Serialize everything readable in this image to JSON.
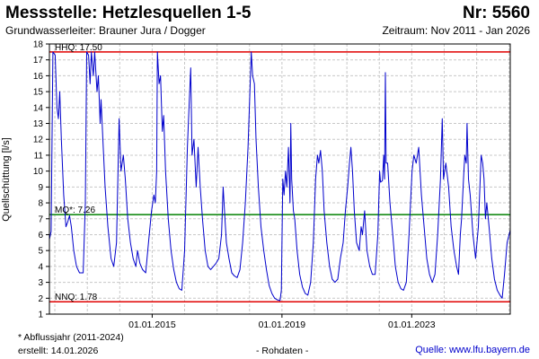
{
  "header": {
    "title": "Messstelle: Hetzlesquellen 1-5",
    "nr": "Nr: 5560",
    "aquifer": "Grundwasserleiter:   Brauner Jura / Dogger",
    "period": "Zeitraum: Nov 2011 - Jan 2026"
  },
  "footer": {
    "footnote": "* Abflussjahr (2011-2024)",
    "created": "erstellt:  14.01.2026",
    "rohdaten": "- Rohdaten -",
    "source": "Quelle: www.lfu.bayern.de"
  },
  "colors": {
    "series": "#0000cc",
    "extreme_lines": "#e00000",
    "mean_line": "#008000",
    "grid": "#c8c8c8",
    "plot_background": "#ffffff"
  },
  "chart_data": {
    "type": "line",
    "title": "",
    "ylabel": "Quellschüttung [l/s]",
    "xlabel": "",
    "ylim": [
      1,
      18
    ],
    "yticks": [
      1,
      2,
      3,
      4,
      5,
      6,
      7,
      8,
      9,
      10,
      11,
      12,
      13,
      14,
      15,
      16,
      17,
      18
    ],
    "xlim": [
      "2011-11-01",
      "2026-01-14"
    ],
    "xticks": [
      {
        "date": "2015-01-01",
        "label": "01.01.2015"
      },
      {
        "date": "2019-01-01",
        "label": "01.01.2019"
      },
      {
        "date": "2023-01-01",
        "label": "01.01.2023"
      }
    ],
    "grid": true,
    "reference_lines": [
      {
        "label": "HHQ: 17.50",
        "value": 17.5,
        "color": "#e00000"
      },
      {
        "label": "MQ*: 7.26",
        "value": 7.26,
        "color": "#008000"
      },
      {
        "label": "NNQ: 1.78",
        "value": 1.78,
        "color": "#e00000"
      }
    ],
    "series": [
      {
        "color": "#0000cc",
        "points": [
          [
            "2011-11-01",
            5.7
          ],
          [
            "2011-11-20",
            6.2
          ],
          [
            "2011-12-10",
            17.5
          ],
          [
            "2012-01-05",
            17.3
          ],
          [
            "2012-01-25",
            14.0
          ],
          [
            "2012-02-10",
            13.3
          ],
          [
            "2012-02-25",
            15.0
          ],
          [
            "2012-03-15",
            12.0
          ],
          [
            "2012-04-10",
            8.5
          ],
          [
            "2012-05-05",
            6.5
          ],
          [
            "2012-05-25",
            6.8
          ],
          [
            "2012-06-15",
            7.2
          ],
          [
            "2012-07-05",
            6.5
          ],
          [
            "2012-08-01",
            5.0
          ],
          [
            "2012-09-01",
            4.0
          ],
          [
            "2012-10-05",
            3.6
          ],
          [
            "2012-11-15",
            3.6
          ],
          [
            "2012-12-10",
            8.0
          ],
          [
            "2012-12-25",
            17.5
          ],
          [
            "2013-01-15",
            17.3
          ],
          [
            "2013-02-01",
            15.5
          ],
          [
            "2013-02-15",
            17.5
          ],
          [
            "2013-03-10",
            16.0
          ],
          [
            "2013-03-25",
            17.5
          ],
          [
            "2013-04-20",
            15.0
          ],
          [
            "2013-05-05",
            16.0
          ],
          [
            "2013-05-25",
            13.0
          ],
          [
            "2013-06-05",
            14.5
          ],
          [
            "2013-06-25",
            12.0
          ],
          [
            "2013-07-20",
            9.0
          ],
          [
            "2013-08-20",
            6.5
          ],
          [
            "2013-09-25",
            4.5
          ],
          [
            "2013-10-25",
            4.0
          ],
          [
            "2013-11-25",
            5.5
          ],
          [
            "2013-12-25",
            13.3
          ],
          [
            "2014-01-15",
            10.0
          ],
          [
            "2014-02-10",
            11.0
          ],
          [
            "2014-03-05",
            9.5
          ],
          [
            "2014-04-01",
            7.0
          ],
          [
            "2014-05-01",
            5.5
          ],
          [
            "2014-06-01",
            4.5
          ],
          [
            "2014-07-01",
            4.0
          ],
          [
            "2014-07-20",
            5.0
          ],
          [
            "2014-08-15",
            4.2
          ],
          [
            "2014-09-15",
            3.8
          ],
          [
            "2014-10-20",
            3.6
          ],
          [
            "2014-11-20",
            5.5
          ],
          [
            "2014-12-25",
            7.5
          ],
          [
            "2015-01-20",
            8.5
          ],
          [
            "2015-02-05",
            8.0
          ],
          [
            "2015-02-20",
            10.0
          ],
          [
            "2015-03-01",
            17.5
          ],
          [
            "2015-03-20",
            15.5
          ],
          [
            "2015-04-05",
            16.0
          ],
          [
            "2015-04-25",
            12.5
          ],
          [
            "2015-05-10",
            13.5
          ],
          [
            "2015-06-01",
            10.0
          ],
          [
            "2015-07-01",
            7.0
          ],
          [
            "2015-08-01",
            5.0
          ],
          [
            "2015-09-01",
            3.8
          ],
          [
            "2015-10-01",
            3.0
          ],
          [
            "2015-11-01",
            2.6
          ],
          [
            "2015-12-01",
            2.5
          ],
          [
            "2016-01-01",
            5.0
          ],
          [
            "2016-02-01",
            11.5
          ],
          [
            "2016-02-20",
            14.0
          ],
          [
            "2016-03-10",
            16.5
          ],
          [
            "2016-03-25",
            11.0
          ],
          [
            "2016-04-15",
            12.0
          ],
          [
            "2016-05-10",
            9.0
          ],
          [
            "2016-06-01",
            11.5
          ],
          [
            "2016-06-25",
            9.0
          ],
          [
            "2016-07-20",
            7.0
          ],
          [
            "2016-08-20",
            5.0
          ],
          [
            "2016-09-20",
            4.0
          ],
          [
            "2016-10-20",
            3.8
          ],
          [
            "2016-11-20",
            4.0
          ],
          [
            "2016-12-20",
            4.2
          ],
          [
            "2017-01-20",
            4.5
          ],
          [
            "2017-02-20",
            6.0
          ],
          [
            "2017-03-10",
            9.0
          ],
          [
            "2017-03-25",
            7.5
          ],
          [
            "2017-04-15",
            5.5
          ],
          [
            "2017-05-15",
            4.5
          ],
          [
            "2017-06-15",
            3.6
          ],
          [
            "2017-07-15",
            3.4
          ],
          [
            "2017-08-15",
            3.3
          ],
          [
            "2017-09-15",
            3.8
          ],
          [
            "2017-10-15",
            5.5
          ],
          [
            "2017-11-15",
            8.0
          ],
          [
            "2017-12-15",
            11.5
          ],
          [
            "2018-01-05",
            15.0
          ],
          [
            "2018-01-20",
            17.5
          ],
          [
            "2018-02-05",
            16.0
          ],
          [
            "2018-02-25",
            15.5
          ],
          [
            "2018-03-15",
            12.0
          ],
          [
            "2018-04-10",
            9.0
          ],
          [
            "2018-05-10",
            6.5
          ],
          [
            "2018-06-10",
            5.0
          ],
          [
            "2018-07-10",
            3.8
          ],
          [
            "2018-08-10",
            2.8
          ],
          [
            "2018-09-10",
            2.3
          ],
          [
            "2018-10-10",
            2.0
          ],
          [
            "2018-11-10",
            1.9
          ],
          [
            "2018-12-10",
            1.85
          ],
          [
            "2018-12-25",
            2.5
          ],
          [
            "2019-01-10",
            9.5
          ],
          [
            "2019-01-25",
            8.5
          ],
          [
            "2019-02-10",
            10.0
          ],
          [
            "2019-02-25",
            9.0
          ],
          [
            "2019-03-15",
            11.5
          ],
          [
            "2019-04-01",
            8.0
          ],
          [
            "2019-04-10",
            13.0
          ],
          [
            "2019-04-20",
            9.5
          ],
          [
            "2019-05-10",
            7.5
          ],
          [
            "2019-05-25",
            7.0
          ],
          [
            "2019-06-20",
            5.0
          ],
          [
            "2019-07-20",
            3.5
          ],
          [
            "2019-08-20",
            2.7
          ],
          [
            "2019-09-20",
            2.3
          ],
          [
            "2019-10-20",
            2.2
          ],
          [
            "2019-11-20",
            3.0
          ],
          [
            "2019-12-20",
            5.5
          ],
          [
            "2020-01-15",
            9.5
          ],
          [
            "2020-02-05",
            11.0
          ],
          [
            "2020-02-20",
            10.5
          ],
          [
            "2020-03-10",
            11.3
          ],
          [
            "2020-03-30",
            10.0
          ],
          [
            "2020-04-20",
            7.5
          ],
          [
            "2020-05-20",
            5.5
          ],
          [
            "2020-06-20",
            4.0
          ],
          [
            "2020-07-20",
            3.2
          ],
          [
            "2020-08-20",
            3.0
          ],
          [
            "2020-09-20",
            3.2
          ],
          [
            "2020-10-20",
            4.5
          ],
          [
            "2020-11-20",
            5.5
          ],
          [
            "2020-12-15",
            7.5
          ],
          [
            "2021-01-10",
            9.0
          ],
          [
            "2021-01-30",
            10.5
          ],
          [
            "2021-02-15",
            11.5
          ],
          [
            "2021-03-05",
            10.0
          ],
          [
            "2021-03-25",
            7.5
          ],
          [
            "2021-04-20",
            5.5
          ],
          [
            "2021-05-20",
            5.0
          ],
          [
            "2021-06-10",
            6.5
          ],
          [
            "2021-06-25",
            6.0
          ],
          [
            "2021-07-20",
            7.5
          ],
          [
            "2021-08-15",
            5.0
          ],
          [
            "2021-09-15",
            4.0
          ],
          [
            "2021-10-15",
            3.5
          ],
          [
            "2021-11-15",
            3.5
          ],
          [
            "2021-12-15",
            6.0
          ],
          [
            "2022-01-05",
            10.0
          ],
          [
            "2022-01-15",
            9.3
          ],
          [
            "2022-02-05",
            9.4
          ],
          [
            "2022-02-20",
            11.0
          ],
          [
            "2022-03-01",
            9.5
          ],
          [
            "2022-03-10",
            16.2
          ],
          [
            "2022-03-18",
            10.5
          ],
          [
            "2022-04-05",
            10.5
          ],
          [
            "2022-05-01",
            8.0
          ],
          [
            "2022-06-01",
            6.0
          ],
          [
            "2022-07-01",
            4.0
          ],
          [
            "2022-08-01",
            3.0
          ],
          [
            "2022-09-01",
            2.6
          ],
          [
            "2022-10-01",
            2.5
          ],
          [
            "2022-11-01",
            3.0
          ],
          [
            "2022-12-01",
            6.0
          ],
          [
            "2023-01-05",
            10.0
          ],
          [
            "2023-01-25",
            11.0
          ],
          [
            "2023-02-20",
            10.5
          ],
          [
            "2023-03-20",
            11.5
          ],
          [
            "2023-04-20",
            8.5
          ],
          [
            "2023-05-20",
            6.5
          ],
          [
            "2023-06-20",
            4.5
          ],
          [
            "2023-07-20",
            3.5
          ],
          [
            "2023-08-20",
            3.0
          ],
          [
            "2023-09-20",
            3.5
          ],
          [
            "2023-10-20",
            6.0
          ],
          [
            "2023-11-20",
            9.5
          ],
          [
            "2023-12-10",
            13.3
          ],
          [
            "2023-12-25",
            9.5
          ],
          [
            "2024-01-20",
            10.5
          ],
          [
            "2024-02-20",
            9.0
          ],
          [
            "2024-03-20",
            6.5
          ],
          [
            "2024-04-20",
            5.0
          ],
          [
            "2024-05-20",
            4.0
          ],
          [
            "2024-06-10",
            3.5
          ],
          [
            "2024-07-01",
            6.0
          ],
          [
            "2024-07-15",
            7.0
          ],
          [
            "2024-08-10",
            10.0
          ],
          [
            "2024-08-20",
            11.0
          ],
          [
            "2024-09-05",
            10.5
          ],
          [
            "2024-09-15",
            13.0
          ],
          [
            "2024-10-01",
            9.5
          ],
          [
            "2024-10-20",
            8.5
          ],
          [
            "2024-11-20",
            6.0
          ],
          [
            "2024-12-20",
            4.5
          ],
          [
            "2025-01-20",
            6.5
          ],
          [
            "2025-02-20",
            11.0
          ],
          [
            "2025-03-10",
            10.5
          ],
          [
            "2025-03-25",
            9.5
          ],
          [
            "2025-04-10",
            7.0
          ],
          [
            "2025-04-25",
            8.0
          ],
          [
            "2025-05-20",
            6.5
          ],
          [
            "2025-06-20",
            4.5
          ],
          [
            "2025-07-20",
            3.2
          ],
          [
            "2025-08-20",
            2.5
          ],
          [
            "2025-09-20",
            2.2
          ],
          [
            "2025-10-15",
            2.0
          ],
          [
            "2025-11-10",
            3.5
          ],
          [
            "2025-12-10",
            5.5
          ],
          [
            "2026-01-14",
            6.3
          ]
        ]
      }
    ]
  }
}
